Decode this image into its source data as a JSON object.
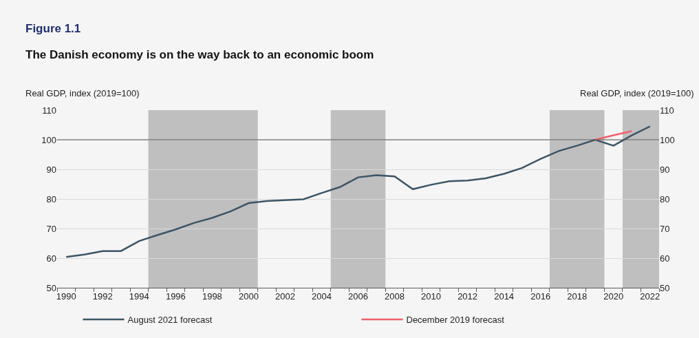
{
  "chart_data": {
    "type": "line",
    "title": "Figure 1.1",
    "subtitle": "The Danish economy is on the way back to an economic boom",
    "ylabel": "Real GDP, index (2019=100)",
    "y2label": "Real GDP, index (2019=100)",
    "x": [
      1990,
      1991,
      1992,
      1993,
      1994,
      1995,
      1996,
      1997,
      1998,
      1999,
      2000,
      2001,
      2002,
      2003,
      2004,
      2005,
      2006,
      2007,
      2008,
      2009,
      2010,
      2011,
      2012,
      2013,
      2014,
      2015,
      2016,
      2017,
      2018,
      2019,
      2020,
      2021,
      2022
    ],
    "series": [
      {
        "name": "August 2021 forecast",
        "color": "#3b5566",
        "values": [
          60.4,
          61.2,
          62.4,
          62.4,
          65.8,
          67.8,
          69.7,
          71.9,
          73.6,
          75.8,
          78.6,
          79.3,
          79.6,
          79.9,
          82.0,
          84.0,
          87.3,
          88.0,
          87.6,
          83.3,
          84.8,
          86.0,
          86.2,
          87.0,
          88.5,
          90.5,
          93.5,
          96.2,
          98.0,
          100.0,
          98.0,
          101.5,
          104.5
        ]
      },
      {
        "name": "December 2019 forecast",
        "color": "#f0606a",
        "x": [
          2019,
          2020,
          2021
        ],
        "values": [
          100.0,
          101.5,
          102.9
        ]
      }
    ],
    "xlim": [
      1989.5,
      2022.5
    ],
    "xticks": [
      1990,
      1992,
      1994,
      1996,
      1998,
      2000,
      2002,
      2004,
      2006,
      2008,
      2010,
      2012,
      2014,
      2016,
      2018,
      2020,
      2022,
      {
        "value": 1989.5,
        "label": null
      },
      {
        "value": 1990.5,
        "label": null
      },
      {
        "value": 1991.5,
        "label": null
      },
      {
        "value": 1992.5,
        "label": null
      },
      {
        "value": 1993.5,
        "label": null
      },
      {
        "value": 1994.5,
        "label": null
      },
      {
        "value": 1995.5,
        "label": null
      },
      {
        "value": 1996.5,
        "label": null
      },
      {
        "value": 1997.5,
        "label": null
      },
      {
        "value": 1998.5,
        "label": null
      },
      {
        "value": 1999.5,
        "label": null
      },
      {
        "value": 2000.5,
        "label": null
      },
      {
        "value": 2001.5,
        "label": null
      },
      {
        "value": 2002.5,
        "label": null
      },
      {
        "value": 2003.5,
        "label": null
      },
      {
        "value": 2004.5,
        "label": null
      },
      {
        "value": 2005.5,
        "label": null
      },
      {
        "value": 2006.5,
        "label": null
      },
      {
        "value": 2007.5,
        "label": null
      },
      {
        "value": 2008.5,
        "label": null
      },
      {
        "value": 2009.5,
        "label": null
      },
      {
        "value": 2010.5,
        "label": null
      },
      {
        "value": 2011.5,
        "label": null
      },
      {
        "value": 2012.5,
        "label": null
      },
      {
        "value": 2013.5,
        "label": null
      },
      {
        "value": 2014.5,
        "label": null
      },
      {
        "value": 2015.5,
        "label": null
      },
      {
        "value": 2016.5,
        "label": null
      },
      {
        "value": 2017.5,
        "label": null
      },
      {
        "value": 2018.5,
        "label": null
      },
      {
        "value": 2019.5,
        "label": null
      },
      {
        "value": 2020.5,
        "label": null
      },
      {
        "value": 2021.5,
        "label": null
      },
      {
        "value": 2022.5,
        "label": null
      }
    ],
    "ylim": [
      50,
      110
    ],
    "yticks": [
      50,
      60,
      70,
      80,
      90,
      100,
      110
    ],
    "y2lim": [
      50,
      110
    ],
    "y2ticks": [
      50,
      60,
      70,
      80,
      90,
      100,
      110
    ],
    "bands": [
      {
        "axis": "x",
        "from": 1994.5,
        "to": 2000.5,
        "color": "#bfbfbf"
      },
      {
        "axis": "x",
        "from": 2004.5,
        "to": 2007.5,
        "color": "#bfbfbf"
      },
      {
        "axis": "x",
        "from": 2016.5,
        "to": 2019.5,
        "color": "#bfbfbf"
      },
      {
        "axis": "x",
        "from": 2020.5,
        "to": 2022.5,
        "color": "#bfbfbf"
      }
    ],
    "ref_lines": [
      {
        "axis": "y",
        "value": 100,
        "color": "#595959",
        "line_style": "solid"
      }
    ],
    "grid": "y",
    "legend": "bottom",
    "marker": "none",
    "line_style": "solid"
  }
}
